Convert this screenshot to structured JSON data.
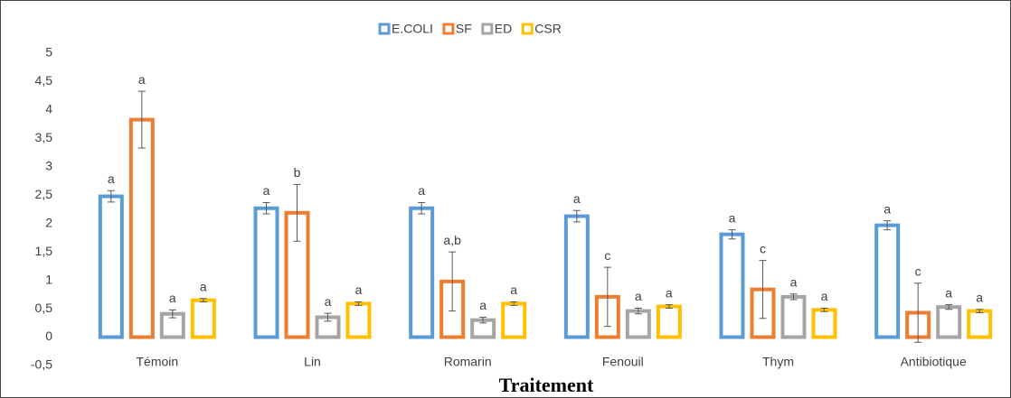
{
  "chart_data": {
    "type": "bar",
    "x_label": "Traitement",
    "categories": [
      "Témoin",
      "Lin",
      "Romarin",
      "Fenouil",
      "Thym",
      "Antibiotique"
    ],
    "series": [
      {
        "name": "E.COLI",
        "color": "#5b9bd5",
        "values": [
          2.48,
          2.27,
          2.27,
          2.13,
          1.81,
          1.97
        ],
        "errors": [
          0.1,
          0.1,
          0.1,
          0.1,
          0.08,
          0.08
        ],
        "letters": [
          "a",
          "a",
          "a",
          "a",
          "a",
          "a"
        ]
      },
      {
        "name": "SF",
        "color": "#ed7d31",
        "values": [
          3.83,
          2.19,
          0.98,
          0.71,
          0.84,
          0.43
        ],
        "errors": [
          0.5,
          0.5,
          0.52,
          0.52,
          0.51,
          0.52
        ],
        "letters": [
          "a",
          "b",
          "a,b",
          "c",
          "c",
          "c"
        ]
      },
      {
        "name": "ED",
        "color": "#a5a5a5",
        "values": [
          0.41,
          0.35,
          0.3,
          0.46,
          0.71,
          0.53
        ],
        "errors": [
          0.07,
          0.07,
          0.05,
          0.05,
          0.05,
          0.04
        ],
        "letters": [
          "a",
          "a",
          "a",
          "a",
          "a",
          "a"
        ]
      },
      {
        "name": "CSR",
        "color": "#ffc000",
        "values": [
          0.65,
          0.59,
          0.59,
          0.54,
          0.48,
          0.46
        ],
        "errors": [
          0.03,
          0.03,
          0.03,
          0.03,
          0.03,
          0.03
        ],
        "letters": [
          "a",
          "a",
          "a",
          "a",
          "a",
          "a"
        ]
      }
    ],
    "ylim": [
      -0.5,
      5
    ],
    "yticks": [
      {
        "value": -0.5,
        "label": "-0,5"
      },
      0,
      {
        "value": 0.5,
        "label": "0,5"
      },
      1,
      {
        "value": 1.5,
        "label": "1,5"
      },
      2,
      {
        "value": 2.5,
        "label": "2,5"
      },
      3,
      {
        "value": 3.5,
        "label": "3,5"
      },
      4,
      {
        "value": 4.5,
        "label": "4,5"
      },
      5
    ],
    "legend": "top",
    "grid": false
  }
}
